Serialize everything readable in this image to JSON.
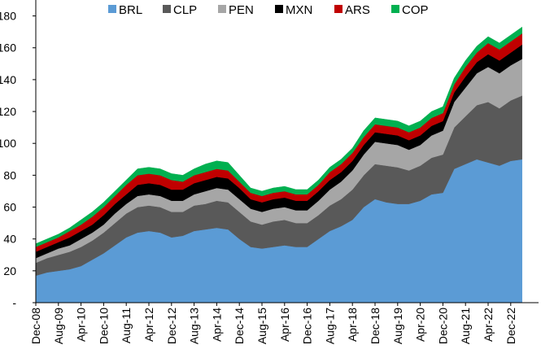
{
  "chart_data": {
    "type": "area",
    "stacked": true,
    "title": "",
    "xlabel": "",
    "ylabel": "",
    "ylim": [
      0,
      190
    ],
    "yticks": [
      {
        "value": 0,
        "label": "-"
      },
      {
        "value": 20,
        "label": "20"
      },
      {
        "value": 40,
        "label": "40"
      },
      {
        "value": 60,
        "label": "60"
      },
      {
        "value": 80,
        "label": "80"
      },
      {
        "value": 100,
        "label": "100"
      },
      {
        "value": 120,
        "label": "120"
      },
      {
        "value": 140,
        "label": "140"
      },
      {
        "value": 160,
        "label": "160"
      },
      {
        "value": 180,
        "label": "180"
      }
    ],
    "grid": false,
    "legend_position": "top",
    "x_tick_labels": [
      "Dec-08",
      "Aug-09",
      "Apr-10",
      "Dec-10",
      "Aug-11",
      "Apr-12",
      "Dec-12",
      "Aug-13",
      "Apr-14",
      "Dec-14",
      "Aug-15",
      "Apr-16",
      "Dec-16",
      "Aug-17",
      "Apr-18",
      "Dec-18",
      "Aug-19",
      "Apr-20",
      "Dec-20",
      "Aug-21",
      "Apr-22",
      "Dec-22"
    ],
    "x": [
      "Dec-08",
      "Apr-09",
      "Aug-09",
      "Dec-09",
      "Apr-10",
      "Aug-10",
      "Dec-10",
      "Apr-11",
      "Aug-11",
      "Dec-11",
      "Apr-12",
      "Aug-12",
      "Dec-12",
      "Apr-13",
      "Aug-13",
      "Dec-13",
      "Apr-14",
      "Aug-14",
      "Dec-14",
      "Apr-15",
      "Aug-15",
      "Dec-15",
      "Apr-16",
      "Aug-16",
      "Dec-16",
      "Apr-17",
      "Aug-17",
      "Dec-17",
      "Apr-18",
      "Aug-18",
      "Dec-18",
      "Apr-19",
      "Aug-19",
      "Dec-19",
      "Apr-20",
      "Aug-20",
      "Dec-20",
      "Apr-21",
      "Aug-21",
      "Dec-21",
      "Apr-22",
      "Aug-22",
      "Dec-22",
      "Feb-23"
    ],
    "series": [
      {
        "name": "BRL",
        "color": "#5b9bd5",
        "values": [
          17,
          19,
          20,
          21,
          23,
          27,
          31,
          36,
          41,
          44,
          45,
          44,
          41,
          42,
          45,
          46,
          47,
          46,
          40,
          35,
          34,
          35,
          36,
          35,
          35,
          40,
          45,
          48,
          52,
          60,
          65,
          63,
          62,
          62,
          64,
          68,
          69,
          84,
          87,
          90,
          88,
          86,
          89,
          90
        ]
      },
      {
        "name": "CLP",
        "color": "#595959",
        "values": [
          8,
          9,
          10,
          11,
          12,
          12,
          13,
          14,
          15,
          16,
          16,
          16,
          16,
          15,
          16,
          16,
          17,
          17,
          17,
          16,
          15,
          16,
          16,
          15,
          15,
          15,
          16,
          17,
          19,
          20,
          22,
          23,
          23,
          21,
          22,
          23,
          24,
          26,
          30,
          34,
          38,
          36,
          38,
          40
        ]
      },
      {
        "name": "PEN",
        "color": "#a6a6a6",
        "values": [
          3,
          3,
          4,
          4,
          5,
          5,
          5,
          6,
          6,
          7,
          7,
          7,
          7,
          7,
          7,
          8,
          8,
          8,
          8,
          8,
          8,
          8,
          8,
          8,
          8,
          9,
          10,
          11,
          12,
          13,
          14,
          14,
          14,
          13,
          13,
          14,
          15,
          16,
          18,
          20,
          22,
          22,
          22,
          23
        ]
      },
      {
        "name": "MXN",
        "color": "#000000",
        "values": [
          4,
          4,
          4,
          5,
          5,
          5,
          6,
          6,
          6,
          7,
          7,
          7,
          7,
          7,
          7,
          7,
          7,
          7,
          7,
          6,
          6,
          6,
          6,
          6,
          6,
          6,
          6,
          6,
          6,
          6,
          6,
          6,
          6,
          6,
          6,
          6,
          6,
          6,
          7,
          7,
          8,
          8,
          8,
          9
        ]
      },
      {
        "name": "ARS",
        "color": "#c00000",
        "values": [
          3,
          3,
          3,
          4,
          4,
          5,
          5,
          5,
          6,
          6,
          6,
          6,
          6,
          5,
          5,
          5,
          5,
          5,
          4,
          4,
          4,
          4,
          4,
          4,
          4,
          4,
          5,
          5,
          5,
          5,
          5,
          5,
          5,
          5,
          5,
          5,
          5,
          5,
          6,
          6,
          7,
          7,
          7,
          7
        ]
      },
      {
        "name": "COP",
        "color": "#00b050",
        "values": [
          2,
          2,
          2,
          2,
          3,
          3,
          3,
          3,
          3,
          4,
          4,
          4,
          4,
          4,
          4,
          5,
          5,
          5,
          4,
          3,
          3,
          3,
          3,
          3,
          3,
          3,
          3,
          3,
          3,
          4,
          4,
          4,
          4,
          4,
          4,
          4,
          4,
          4,
          4,
          4,
          4,
          4,
          4,
          4
        ]
      }
    ]
  }
}
